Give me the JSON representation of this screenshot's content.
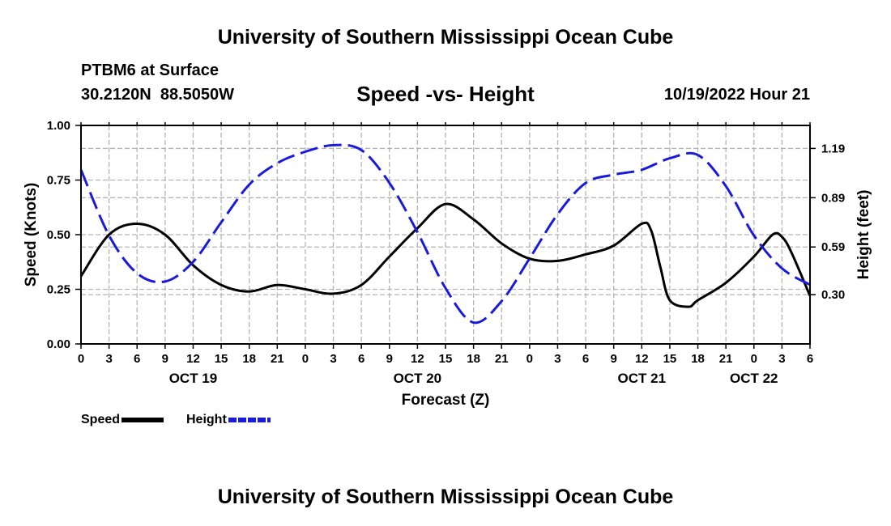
{
  "header": {
    "title": "University of Southern Mississippi Ocean Cube",
    "station": "PTBM6 at Surface",
    "coordinates": "30.2120N  88.5050W",
    "chart_title": "Speed -vs- Height",
    "datetime": "10/19/2022 Hour 21"
  },
  "footer": {
    "title": "University of Southern Mississippi Ocean Cube"
  },
  "legend": {
    "speed_label": "Speed",
    "height_label": "Height"
  },
  "colors": {
    "speed": "#000000",
    "height": "#1a1adb",
    "grid": "#b4b4b4"
  },
  "chart_data": {
    "type": "line",
    "title": "Speed -vs- Height",
    "xlabel": "Forecast (Z)",
    "ylabel": "Speed (Knots)",
    "y2label": "Height (feet)",
    "x_range_hours": [
      0,
      78
    ],
    "ylim": [
      0,
      1
    ],
    "y2lim": [
      0.0,
      1.33
    ],
    "y_ticks": [
      "0.00",
      "0.25",
      "0.50",
      "0.75",
      "1.00"
    ],
    "y_tick_values": [
      0,
      0.25,
      0.5,
      0.75,
      1.0
    ],
    "y2_ticks": [
      "0.30",
      "0.59",
      "0.89",
      "1.19"
    ],
    "y2_tick_values": [
      0.3,
      0.59,
      0.89,
      1.19
    ],
    "x_tick_labels": [
      "0",
      "3",
      "6",
      "9",
      "12",
      "15",
      "18",
      "21",
      "0",
      "3",
      "6",
      "9",
      "12",
      "15",
      "18",
      "21",
      "0",
      "3",
      "6",
      "9",
      "12",
      "15",
      "18",
      "21",
      "0",
      "3",
      "6"
    ],
    "date_labels": [
      {
        "label": "OCT 19",
        "hour": 12
      },
      {
        "label": "OCT 20",
        "hour": 36
      },
      {
        "label": "OCT 21",
        "hour": 60
      },
      {
        "label": "OCT 22",
        "hour": 72
      }
    ],
    "series": [
      {
        "name": "Speed",
        "axis": "left",
        "style": "solid",
        "x": [
          0,
          3,
          6,
          9,
          12,
          15,
          18,
          21,
          24,
          27,
          30,
          33,
          36,
          39,
          42,
          45,
          48,
          51,
          54,
          57,
          60,
          61,
          62,
          63,
          65,
          66,
          69,
          72,
          74,
          75,
          76,
          78
        ],
        "values": [
          0.31,
          0.5,
          0.55,
          0.5,
          0.36,
          0.27,
          0.24,
          0.27,
          0.25,
          0.23,
          0.27,
          0.4,
          0.53,
          0.64,
          0.57,
          0.46,
          0.39,
          0.38,
          0.41,
          0.45,
          0.55,
          0.52,
          0.35,
          0.2,
          0.17,
          0.2,
          0.28,
          0.4,
          0.5,
          0.49,
          0.42,
          0.22
        ]
      },
      {
        "name": "Height",
        "axis": "right",
        "style": "dashed",
        "x": [
          0,
          3,
          6,
          9,
          12,
          15,
          18,
          21,
          24,
          27,
          30,
          33,
          36,
          39,
          42,
          45,
          48,
          51,
          54,
          57,
          60,
          63,
          66,
          69,
          72,
          75,
          78
        ],
        "values": [
          1.06,
          0.66,
          0.43,
          0.38,
          0.5,
          0.74,
          0.97,
          1.1,
          1.17,
          1.21,
          1.18,
          0.98,
          0.68,
          0.34,
          0.13,
          0.26,
          0.52,
          0.79,
          0.98,
          1.03,
          1.06,
          1.13,
          1.15,
          0.96,
          0.66,
          0.46,
          0.36
        ]
      }
    ]
  }
}
